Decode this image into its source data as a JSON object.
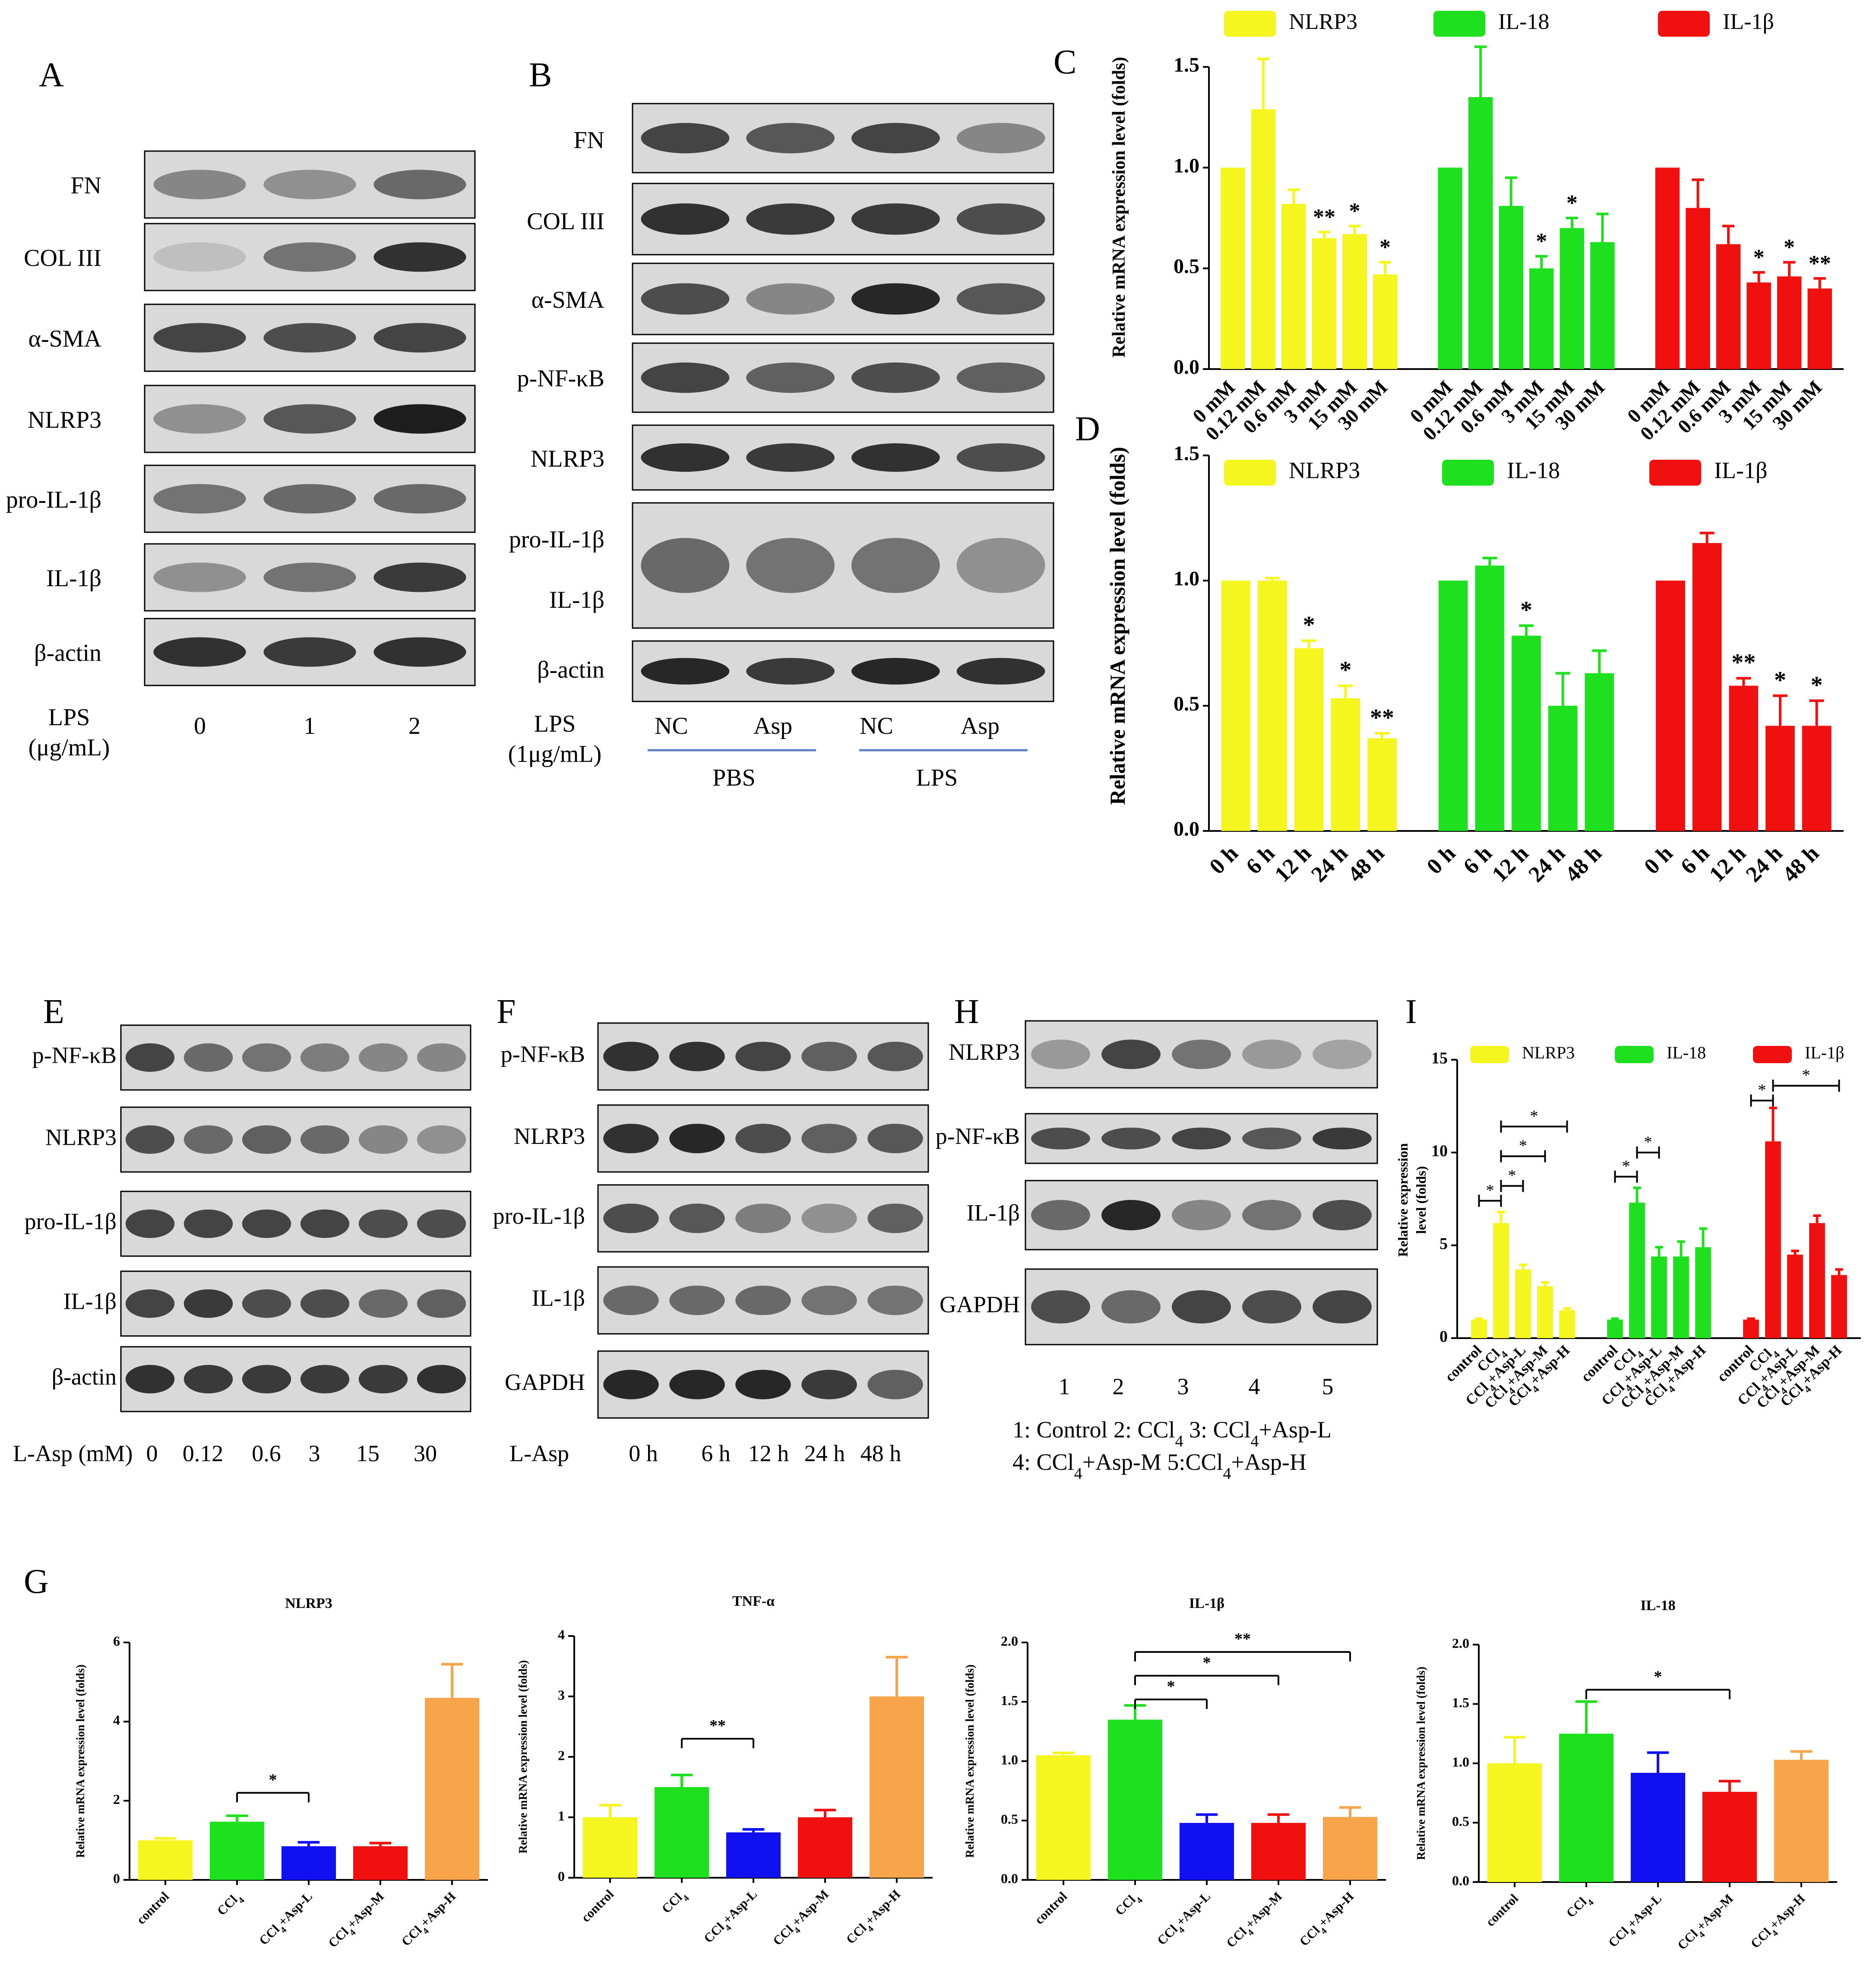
{
  "colors": {
    "yellow": "#f5f51f",
    "green": "#1fe01f",
    "red": "#f01010",
    "blue": "#1010f0",
    "orange": "#f7a44a",
    "line_blue": "#5b7fc4"
  },
  "panels": {
    "A": {
      "label": "A",
      "bands": [
        "FN",
        "COL III",
        "α-SMA",
        "NLRP3",
        "pro-IL-1β",
        "IL-1β",
        "β-actin"
      ],
      "x_title": [
        "LPS",
        "(μg/mL)"
      ],
      "lanes": [
        "0",
        "1",
        "2"
      ]
    },
    "B": {
      "label": "B",
      "bands": [
        "FN",
        "COL III",
        "α-SMA",
        "p-NF-κB",
        "NLRP3",
        "pro-IL-1β",
        "IL-1β",
        "β-actin"
      ],
      "x_title": [
        "LPS",
        "(1μg/mL)"
      ],
      "lanes": [
        "NC",
        "Asp",
        "NC",
        "Asp"
      ],
      "groups": [
        "PBS",
        "LPS"
      ]
    },
    "E": {
      "label": "E",
      "bands": [
        "p-NF-κB",
        "NLRP3",
        "pro-IL-1β",
        "IL-1β",
        "β-actin"
      ],
      "x_title": "L-Asp (mM)",
      "lanes": [
        "0",
        "0.12",
        "0.6",
        "3",
        "15",
        "30"
      ]
    },
    "F": {
      "label": "F",
      "bands": [
        "p-NF-κB",
        "NLRP3",
        "pro-IL-1β",
        "IL-1β",
        "GAPDH"
      ],
      "x_title": "L-Asp",
      "lanes": [
        "0 h",
        "6 h",
        "12 h",
        "24 h",
        "48 h"
      ]
    },
    "H": {
      "label": "H",
      "bands": [
        "NLRP3",
        "p-NF-κB",
        "IL-1β",
        "GAPDH"
      ],
      "lanes": [
        "1",
        "2",
        "3",
        "4",
        "5"
      ],
      "legend_line1": "1: Control  2: CCl4  3: CCl4+Asp-L",
      "legend_line2": "4: CCl4+Asp-M 5:CCl4+Asp-H"
    },
    "G_label": "G"
  },
  "chart_data": [
    {
      "id": "C",
      "label": "C",
      "type": "bar",
      "ylabel": "Relative mRNA expression level (folds)",
      "ylim": [
        0,
        1.5
      ],
      "yticks": [
        "0.0",
        "0.5",
        "1.0",
        "1.5"
      ],
      "legend": [
        "NLRP3",
        "IL-18",
        "IL-1β"
      ],
      "categories": [
        "0 mM",
        "0.12 mM",
        "0.6 mM",
        "3 mM",
        "15 mM",
        "30 mM"
      ],
      "series": [
        {
          "name": "NLRP3",
          "color": "yellow",
          "values": [
            1.0,
            1.29,
            0.82,
            0.65,
            0.67,
            0.47
          ],
          "errors": [
            0,
            0.25,
            0.07,
            0.03,
            0.04,
            0.06
          ],
          "sig": [
            "",
            "",
            "",
            "**",
            "*",
            "*"
          ]
        },
        {
          "name": "IL-18",
          "color": "green",
          "values": [
            1.0,
            1.35,
            0.81,
            0.5,
            0.7,
            0.63
          ],
          "errors": [
            0,
            0.25,
            0.14,
            0.06,
            0.05,
            0.14
          ],
          "sig": [
            "",
            "",
            "",
            "*",
            "*",
            ""
          ]
        },
        {
          "name": "IL-1β",
          "color": "red",
          "values": [
            1.0,
            0.8,
            0.62,
            0.43,
            0.46,
            0.4
          ],
          "errors": [
            0,
            0.14,
            0.09,
            0.05,
            0.07,
            0.05
          ],
          "sig": [
            "",
            "",
            "",
            "*",
            "*",
            "**"
          ]
        }
      ]
    },
    {
      "id": "D",
      "label": "D",
      "type": "bar",
      "ylabel": "Relative mRNA expression level (folds)",
      "ylim": [
        0,
        1.5
      ],
      "yticks": [
        "0.0",
        "0.5",
        "1.0",
        "1.5"
      ],
      "legend": [
        "NLRP3",
        "IL-18",
        "IL-1β"
      ],
      "categories": [
        "0 h",
        "6 h",
        "12 h",
        "24 h",
        "48 h"
      ],
      "series": [
        {
          "name": "NLRP3",
          "color": "yellow",
          "values": [
            1.0,
            1.0,
            0.73,
            0.53,
            0.37
          ],
          "errors": [
            0,
            0.01,
            0.03,
            0.05,
            0.02
          ],
          "sig": [
            "",
            "",
            "*",
            "*",
            "**"
          ]
        },
        {
          "name": "IL-18",
          "color": "green",
          "values": [
            1.0,
            1.06,
            0.78,
            0.5,
            0.63
          ],
          "errors": [
            0,
            0.03,
            0.04,
            0.13,
            0.09
          ],
          "sig": [
            "",
            "",
            "*",
            "",
            ""
          ]
        },
        {
          "name": "IL-1β",
          "color": "red",
          "values": [
            1.0,
            1.15,
            0.58,
            0.42,
            0.42
          ],
          "errors": [
            0,
            0.04,
            0.03,
            0.12,
            0.1
          ],
          "sig": [
            "",
            "",
            "**",
            "*",
            "*"
          ]
        }
      ]
    },
    {
      "id": "I",
      "label": "I",
      "type": "bar",
      "ylabel": [
        "Relative  expression",
        "level (folds)"
      ],
      "ylim": [
        0,
        15
      ],
      "yticks": [
        "0",
        "5",
        "10",
        "15"
      ],
      "legend": [
        "NLRP3",
        "IL-18",
        "IL-1β"
      ],
      "categories": [
        "control",
        "CCl4",
        "CCl4+Asp-L",
        "CCl4+Asp-M",
        "CCl4+Asp-H"
      ],
      "series": [
        {
          "name": "NLRP3",
          "color": "yellow",
          "values": [
            1.0,
            6.2,
            3.7,
            2.8,
            1.5
          ],
          "errors": [
            0.05,
            0.6,
            0.25,
            0.2,
            0.1
          ]
        },
        {
          "name": "IL-18",
          "color": "green",
          "values": [
            1.0,
            7.3,
            4.4,
            4.4,
            4.9
          ],
          "errors": [
            0.05,
            0.8,
            0.5,
            0.8,
            1.0
          ]
        },
        {
          "name": "IL-1β",
          "color": "red",
          "values": [
            1.0,
            10.6,
            4.5,
            6.2,
            3.4
          ],
          "errors": [
            0.05,
            1.8,
            0.2,
            0.4,
            0.3
          ]
        }
      ],
      "brackets": [
        {
          "series": 0,
          "from": 0,
          "to": 1,
          "y": 7.4,
          "text": "*"
        },
        {
          "series": 0,
          "from": 1,
          "to": 2,
          "y": 8.2,
          "text": "*"
        },
        {
          "series": 0,
          "from": 1,
          "to": 3,
          "y": 9.8,
          "text": "*"
        },
        {
          "series": 0,
          "from": 1,
          "to": 4,
          "y": 11.4,
          "text": "*"
        },
        {
          "series": 1,
          "from": 0,
          "to": 1,
          "y": 8.7,
          "text": "*"
        },
        {
          "series": 1,
          "from": 1,
          "to": 2,
          "y": 10.0,
          "text": "*"
        },
        {
          "series": 2,
          "from": 0,
          "to": 1,
          "y": 12.8,
          "text": "*"
        },
        {
          "series": 2,
          "from": 1,
          "to": 4,
          "y": 13.6,
          "text": "*"
        }
      ]
    },
    {
      "id": "G1",
      "type": "bar",
      "title": "NLRP3",
      "ylabel": "Relative mRNA expression level (folds)",
      "ylim": [
        0,
        6
      ],
      "yticks": [
        "0",
        "2",
        "4",
        "6"
      ],
      "categories": [
        "control",
        "CCl4",
        "CCl4+Asp-L",
        "CCl4+Asp-M",
        "CCl4+Asp-H"
      ],
      "values": [
        1.0,
        1.47,
        0.85,
        0.85,
        4.6
      ],
      "errors": [
        0.05,
        0.15,
        0.1,
        0.08,
        0.85
      ],
      "colors": [
        "yellow",
        "green",
        "blue",
        "red",
        "orange"
      ],
      "brackets": [
        {
          "from": 1,
          "to": 2,
          "y": 2.2,
          "text": "*"
        }
      ]
    },
    {
      "id": "G2",
      "type": "bar",
      "title": "TNF-α",
      "ylabel": "Relative mRNA expression level (folds)",
      "ylim": [
        0,
        4
      ],
      "yticks": [
        "0",
        "1",
        "2",
        "3",
        "4"
      ],
      "categories": [
        "control",
        "CCl4",
        "CCl4+Asp-L",
        "CCl4+Asp-M",
        "CCl4+Asp-H"
      ],
      "values": [
        1.0,
        1.5,
        0.75,
        1.0,
        3.0
      ],
      "errors": [
        0.2,
        0.2,
        0.05,
        0.12,
        0.65
      ],
      "colors": [
        "yellow",
        "green",
        "blue",
        "red",
        "orange"
      ],
      "brackets": [
        {
          "from": 1,
          "to": 2,
          "y": 2.3,
          "text": "**"
        }
      ]
    },
    {
      "id": "G3",
      "type": "bar",
      "title": "IL-1β",
      "ylabel": "Relative mRNA expression level (folds)",
      "ylim": [
        0,
        2.0
      ],
      "yticks": [
        "0.0",
        "0.5",
        "1.0",
        "1.5",
        "2.0"
      ],
      "categories": [
        "control",
        "CCl4",
        "CCl4+Asp-L",
        "CCl4+Asp-M",
        "CCl4+Asp-H"
      ],
      "values": [
        1.05,
        1.35,
        0.48,
        0.48,
        0.53
      ],
      "errors": [
        0.02,
        0.12,
        0.07,
        0.07,
        0.08
      ],
      "colors": [
        "yellow",
        "green",
        "blue",
        "red",
        "orange"
      ],
      "brackets": [
        {
          "from": 1,
          "to": 2,
          "y": 1.52,
          "text": "*"
        },
        {
          "from": 1,
          "to": 3,
          "y": 1.72,
          "text": "*"
        },
        {
          "from": 1,
          "to": 4,
          "y": 1.92,
          "text": "**"
        }
      ]
    },
    {
      "id": "G4",
      "type": "bar",
      "title": "IL-18",
      "ylabel": "Relative mRNA expression level (folds)",
      "ylim": [
        0,
        2.0
      ],
      "yticks": [
        "0.0",
        "0.5",
        "1.0",
        "1.5",
        "2.0"
      ],
      "categories": [
        "control",
        "CCl4",
        "CCl4+Asp-L",
        "CCl4+Asp-M",
        "CCl4+Asp-H"
      ],
      "values": [
        1.0,
        1.25,
        0.92,
        0.76,
        1.03
      ],
      "errors": [
        0.22,
        0.27,
        0.17,
        0.09,
        0.07
      ],
      "colors": [
        "yellow",
        "green",
        "blue",
        "red",
        "orange"
      ],
      "brackets": [
        {
          "from": 1,
          "to": 3,
          "y": 1.62,
          "text": "*"
        }
      ]
    }
  ]
}
